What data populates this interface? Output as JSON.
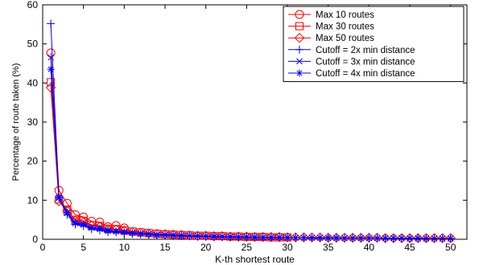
{
  "chart_data": {
    "type": "line",
    "xlabel": "K-th shortest route",
    "ylabel": "Percentage of route taken (%)",
    "xlim": [
      0,
      52
    ],
    "ylim": [
      0,
      60
    ],
    "xticks": [
      0,
      5,
      10,
      15,
      20,
      25,
      30,
      35,
      40,
      45,
      50
    ],
    "yticks": [
      0,
      10,
      20,
      30,
      40,
      50,
      60
    ],
    "grid": false,
    "legend_position": "top-right",
    "colors": {
      "red": "#ff0000",
      "blue": "#0000ff",
      "axis": "#000000"
    },
    "series": [
      {
        "name": "Max 10 routes",
        "color": "#ff0000",
        "marker": "circle",
        "x": [
          1,
          2,
          3,
          4,
          5,
          6,
          7,
          8,
          9,
          10
        ],
        "y": [
          47.7,
          12.5,
          9.2,
          6.3,
          5.7,
          4.6,
          4.4,
          3.2,
          3.5,
          2.9
        ]
      },
      {
        "name": "Max 30 routes",
        "color": "#ff0000",
        "marker": "square",
        "x": [
          1,
          2,
          3,
          4,
          5,
          6,
          7,
          8,
          9,
          10,
          11,
          12,
          13,
          14,
          15,
          16,
          17,
          18,
          19,
          20,
          21,
          22,
          23,
          24,
          25,
          26,
          27,
          28,
          29,
          30
        ],
        "y": [
          40.2,
          10.2,
          7.6,
          5.0,
          4.7,
          3.6,
          3.4,
          2.7,
          2.6,
          2.3,
          2.0,
          1.8,
          1.6,
          1.4,
          1.3,
          1.2,
          1.1,
          1.0,
          0.9,
          0.9,
          0.8,
          0.8,
          0.7,
          0.7,
          0.6,
          0.6,
          0.6,
          0.5,
          0.5,
          0.5
        ]
      },
      {
        "name": "Max 50 routes",
        "color": "#ff0000",
        "marker": "diamond",
        "x": [
          1,
          2,
          3,
          4,
          5,
          6,
          7,
          8,
          9,
          10,
          11,
          12,
          13,
          14,
          15,
          16,
          17,
          18,
          19,
          20,
          21,
          22,
          23,
          24,
          25,
          26,
          27,
          28,
          29,
          30,
          31,
          32,
          33,
          34,
          35,
          36,
          37,
          38,
          39,
          40,
          41,
          42,
          43,
          44,
          45,
          46,
          47,
          48,
          49,
          50
        ],
        "y": [
          38.8,
          9.7,
          7.3,
          4.8,
          4.4,
          3.5,
          3.2,
          2.6,
          2.5,
          2.2,
          1.9,
          1.7,
          1.5,
          1.4,
          1.3,
          1.2,
          1.1,
          1.0,
          0.9,
          0.9,
          0.8,
          0.8,
          0.7,
          0.7,
          0.7,
          0.6,
          0.6,
          0.6,
          0.6,
          0.5,
          0.5,
          0.5,
          0.5,
          0.5,
          0.4,
          0.4,
          0.4,
          0.4,
          0.4,
          0.4,
          0.4,
          0.3,
          0.3,
          0.3,
          0.3,
          0.3,
          0.3,
          0.3,
          0.3,
          0.3
        ]
      },
      {
        "name": "Cutoff = 2x min distance",
        "color": "#0000ff",
        "marker": "plus",
        "x": [
          1,
          2,
          3,
          4,
          5,
          6,
          7,
          8,
          9,
          10,
          11,
          12,
          13,
          14,
          15,
          16,
          17,
          18,
          19,
          20,
          21,
          22,
          23,
          24,
          25,
          26,
          27,
          28,
          29,
          30,
          31,
          32,
          33,
          34,
          35,
          36,
          37,
          38,
          39,
          40,
          41,
          42,
          43,
          44,
          45,
          46,
          47,
          48,
          49,
          50
        ],
        "y": [
          55.2,
          10.5,
          6.3,
          3.8,
          3.4,
          2.6,
          2.3,
          1.9,
          1.8,
          1.6,
          1.4,
          1.3,
          1.2,
          1.0,
          1.0,
          0.9,
          0.8,
          0.8,
          0.7,
          0.7,
          0.6,
          0.6,
          0.6,
          0.5,
          0.5,
          0.5,
          0.5,
          0.4,
          0.4,
          0.4,
          0.4,
          0.4,
          0.3,
          0.3,
          0.3,
          0.3,
          0.3,
          0.3,
          0.3,
          0.3,
          0.3,
          0.2,
          0.2,
          0.2,
          0.2,
          0.2,
          0.2,
          0.2,
          0.2,
          0.2
        ]
      },
      {
        "name": "Cutoff = 3x min distance",
        "color": "#0000ff",
        "marker": "x",
        "x": [
          1,
          2,
          3,
          4,
          5,
          6,
          7,
          8,
          9,
          10,
          11,
          12,
          13,
          14,
          15,
          16,
          17,
          18,
          19,
          20,
          21,
          22,
          23,
          24,
          25,
          26,
          27,
          28,
          29,
          30,
          31,
          32,
          33,
          34,
          35,
          36,
          37,
          38,
          39,
          40,
          41,
          42,
          43,
          44,
          45,
          46,
          47,
          48,
          49,
          50
        ],
        "y": [
          46.5,
          10.6,
          6.7,
          4.1,
          3.7,
          2.9,
          2.6,
          2.1,
          2.0,
          1.8,
          1.6,
          1.4,
          1.3,
          1.1,
          1.1,
          1.0,
          0.9,
          0.9,
          0.8,
          0.8,
          0.7,
          0.7,
          0.6,
          0.6,
          0.6,
          0.5,
          0.5,
          0.5,
          0.5,
          0.4,
          0.4,
          0.4,
          0.4,
          0.4,
          0.3,
          0.3,
          0.3,
          0.3,
          0.3,
          0.3,
          0.3,
          0.3,
          0.3,
          0.3,
          0.2,
          0.2,
          0.2,
          0.2,
          0.2,
          0.2
        ]
      },
      {
        "name": "Cutoff = 4x min distance",
        "color": "#0000ff",
        "marker": "star",
        "x": [
          1,
          2,
          3,
          4,
          5,
          6,
          7,
          8,
          9,
          10,
          11,
          12,
          13,
          14,
          15,
          16,
          17,
          18,
          19,
          20,
          21,
          22,
          23,
          24,
          25,
          26,
          27,
          28,
          29,
          30,
          31,
          32,
          33,
          34,
          35,
          36,
          37,
          38,
          39,
          40,
          41,
          42,
          43,
          44,
          45,
          46,
          47,
          48,
          49,
          50
        ],
        "y": [
          43.5,
          10.8,
          6.9,
          4.3,
          3.9,
          3.0,
          2.8,
          2.3,
          2.1,
          1.9,
          1.7,
          1.5,
          1.4,
          1.2,
          1.2,
          1.1,
          1.0,
          0.9,
          0.9,
          0.8,
          0.8,
          0.7,
          0.7,
          0.6,
          0.6,
          0.6,
          0.5,
          0.5,
          0.5,
          0.5,
          0.4,
          0.4,
          0.4,
          0.4,
          0.4,
          0.4,
          0.3,
          0.3,
          0.3,
          0.3,
          0.3,
          0.3,
          0.3,
          0.3,
          0.3,
          0.3,
          0.2,
          0.2,
          0.2,
          0.2
        ]
      }
    ]
  }
}
